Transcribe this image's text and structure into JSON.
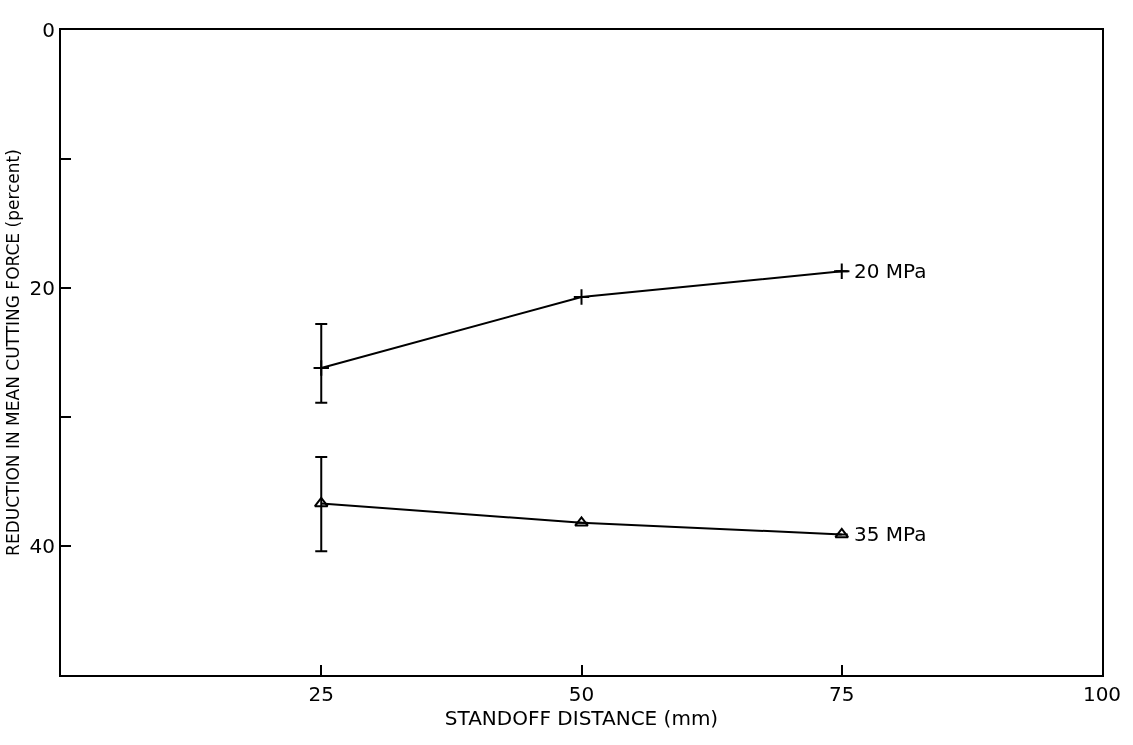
{
  "chart_data": {
    "type": "line",
    "xlabel": "STANDOFF DISTANCE (mm)",
    "ylabel": "REDUCTION IN MEAN CUTTING FORCE (percent)",
    "x": [
      25,
      50,
      75
    ],
    "series": [
      {
        "name": "20 MPa",
        "color": "#000000",
        "marker": "cross",
        "values": [
          26.2,
          20.7,
          18.7
        ],
        "errors": [
          [
            22.8,
            28.9
          ],
          null,
          null
        ]
      },
      {
        "name": "35 MPa",
        "color": "#000000",
        "marker": "triangle",
        "values": [
          36.7,
          38.2,
          39.1
        ],
        "errors": [
          [
            33.1,
            40.4
          ],
          null,
          null
        ]
      }
    ],
    "xlim": [
      0,
      100
    ],
    "xticks": [
      25,
      50,
      75,
      100
    ],
    "ylim": [
      50,
      0
    ],
    "yticks": [
      0,
      {
        "value": 10,
        "label": null
      },
      20,
      {
        "value": 30,
        "label": null
      },
      40
    ],
    "legend": "right",
    "line_style": "solid"
  }
}
